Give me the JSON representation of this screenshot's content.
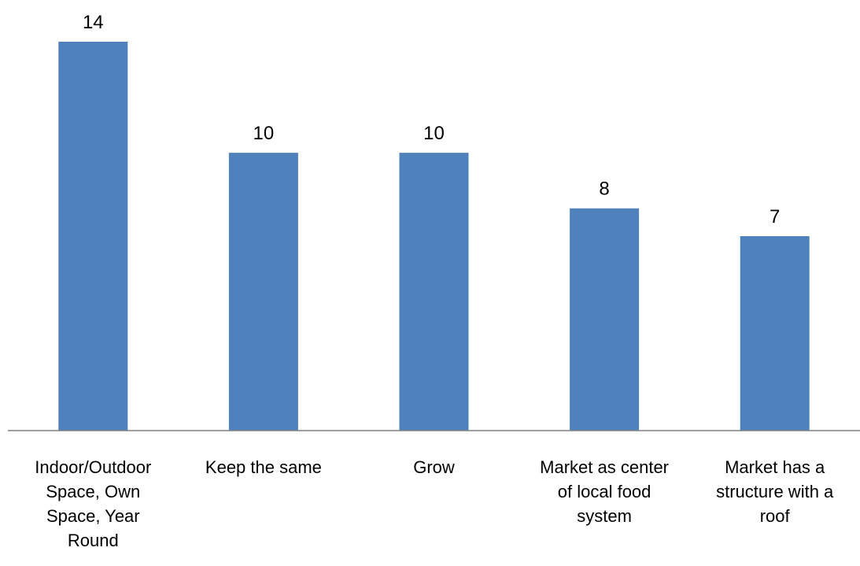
{
  "chart_data": {
    "type": "bar",
    "title": "",
    "xlabel": "",
    "ylabel": "",
    "categories": [
      "Indoor/Outdoor Space, Own Space, Year Round",
      "Keep the same",
      "Grow",
      "Market as center of local food system",
      "Market has a structure with a roof"
    ],
    "category_lines": [
      [
        "Indoor/Outdoor",
        "Space, Own",
        "Space, Year",
        "Round"
      ],
      [
        "Keep the same"
      ],
      [
        "Grow"
      ],
      [
        "Market as center",
        "of local food",
        "system"
      ],
      [
        "Market has a",
        "structure with a",
        "roof"
      ]
    ],
    "values": [
      14,
      10,
      10,
      8,
      7
    ],
    "ylim": [
      0,
      14
    ],
    "grid": false,
    "legend": "none",
    "data_labels": [
      "14",
      "10",
      "10",
      "8",
      "7"
    ],
    "bar_color": "#4f81bd",
    "axis_color": "#808080"
  }
}
